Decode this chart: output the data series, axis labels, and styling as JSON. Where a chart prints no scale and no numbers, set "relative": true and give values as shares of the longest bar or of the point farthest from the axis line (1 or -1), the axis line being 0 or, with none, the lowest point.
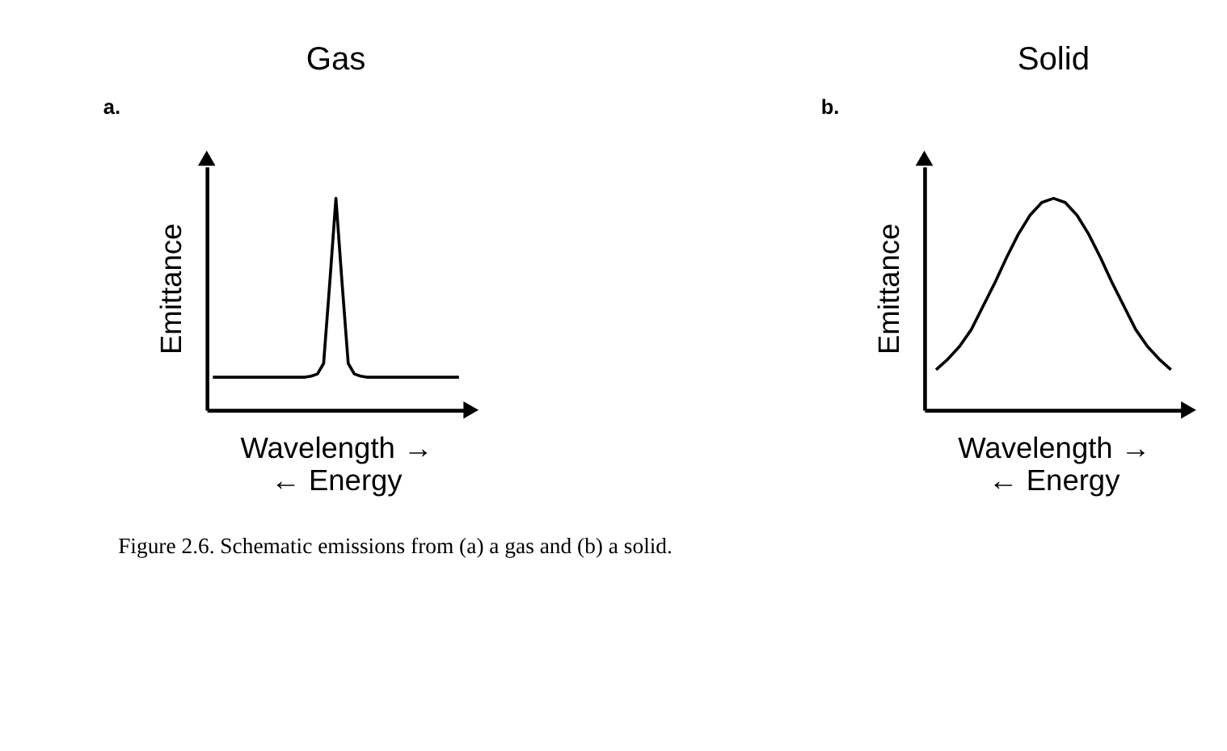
{
  "chart_data": [
    {
      "type": "line",
      "title": "Gas",
      "xlabel": "Wavelength →\n← Energy",
      "ylabel": "Emittance",
      "relative": true,
      "tick_labels": false,
      "grid": false,
      "color": "#000000",
      "categories": [
        null,
        null,
        null,
        null,
        null,
        null,
        null,
        null,
        null,
        null,
        null,
        null,
        null,
        null,
        null,
        null,
        null,
        null,
        null,
        null,
        null,
        null,
        null,
        null,
        null,
        null,
        null,
        null,
        null,
        null,
        null,
        null,
        null,
        null,
        null,
        null,
        null,
        null,
        null,
        null,
        null
      ],
      "values": [
        0.155,
        0.155,
        0.155,
        0.155,
        0.155,
        0.155,
        0.155,
        0.155,
        0.155,
        0.155,
        0.155,
        0.155,
        0.155,
        0.155,
        0.155,
        0.155,
        0.16,
        0.17,
        0.22,
        0.6,
        1.0,
        0.6,
        0.22,
        0.17,
        0.16,
        0.155,
        0.155,
        0.155,
        0.155,
        0.155,
        0.155,
        0.155,
        0.155,
        0.155,
        0.155,
        0.155,
        0.155,
        0.155,
        0.155,
        0.155,
        0.155
      ],
      "annotations": [
        "a.",
        "Figure 2.6. Schematic emissions from (a) a gas and (b) a solid."
      ]
    },
    {
      "type": "line",
      "title": "Solid",
      "xlabel": "Wavelength →\n← Energy",
      "ylabel": "Emittance",
      "relative": true,
      "tick_labels": false,
      "grid": false,
      "color": "#000000",
      "categories": [
        null,
        null,
        null,
        null,
        null,
        null,
        null,
        null,
        null,
        null,
        null,
        null,
        null,
        null,
        null,
        null,
        null,
        null,
        null,
        null,
        null
      ],
      "values": [
        0.19,
        0.24,
        0.3,
        0.38,
        0.49,
        0.6,
        0.72,
        0.83,
        0.92,
        0.98,
        1.0,
        0.98,
        0.92,
        0.83,
        0.72,
        0.6,
        0.49,
        0.38,
        0.3,
        0.24,
        0.19
      ],
      "annotations": [
        "b."
      ]
    }
  ]
}
